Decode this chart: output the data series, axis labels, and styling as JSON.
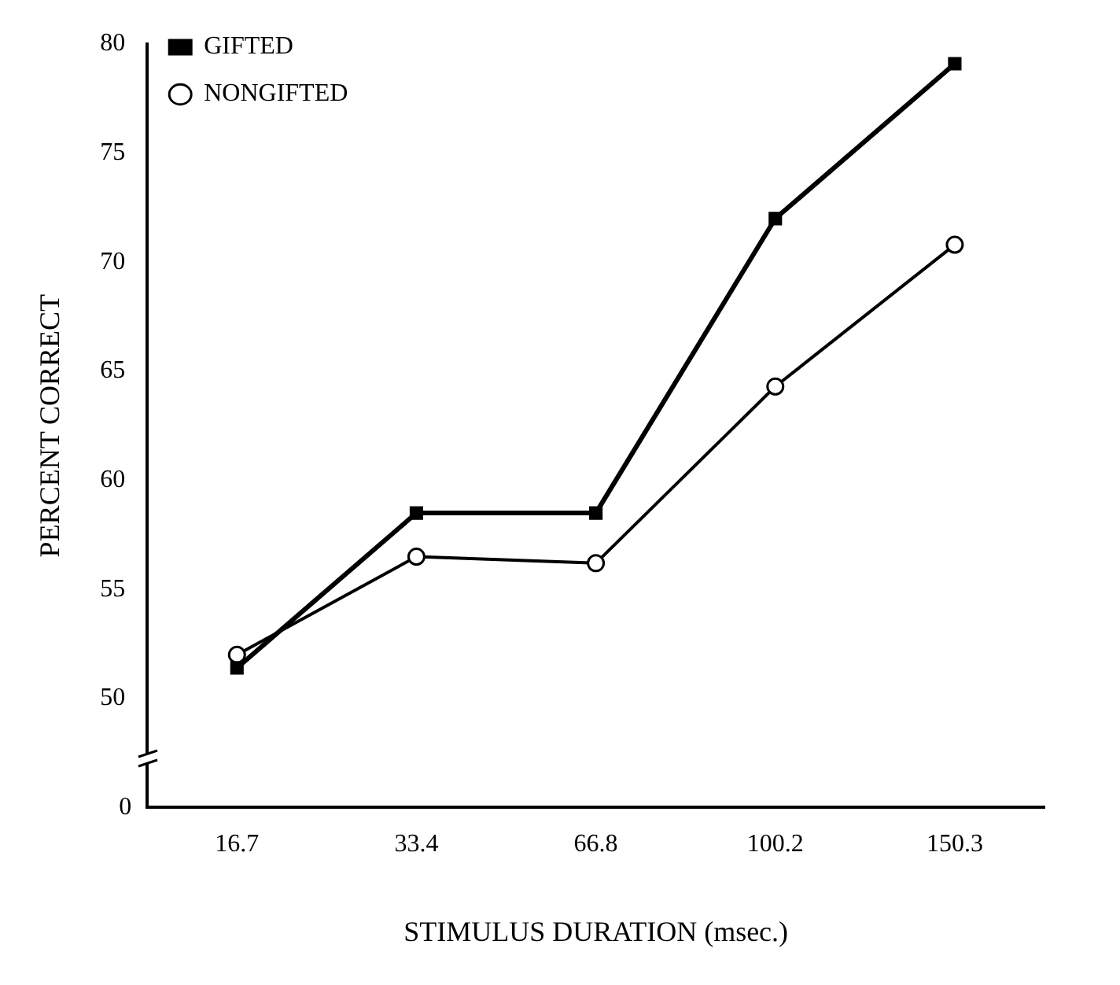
{
  "chart_data": {
    "type": "line",
    "xlabel": "STIMULUS DURATION (msec.)",
    "ylabel": "PERCENT CORRECT",
    "categories": [
      "16.7",
      "33.4",
      "66.8",
      "100.2",
      "150.3"
    ],
    "series": [
      {
        "name": "GIFTED",
        "color": "#000000",
        "marker": "square",
        "values": [
          51.4,
          58.5,
          58.5,
          72.0,
          79.1
        ]
      },
      {
        "name": "NONGIFTED",
        "color": "#000000",
        "marker": "circle",
        "values": [
          52.0,
          56.5,
          56.2,
          64.3,
          70.8
        ]
      }
    ],
    "ylim": [
      45,
      80
    ],
    "yticks": [
      50,
      55,
      60,
      65,
      70,
      75,
      80
    ],
    "annotations": [
      "0"
    ],
    "grid": false,
    "legend": "top left"
  }
}
